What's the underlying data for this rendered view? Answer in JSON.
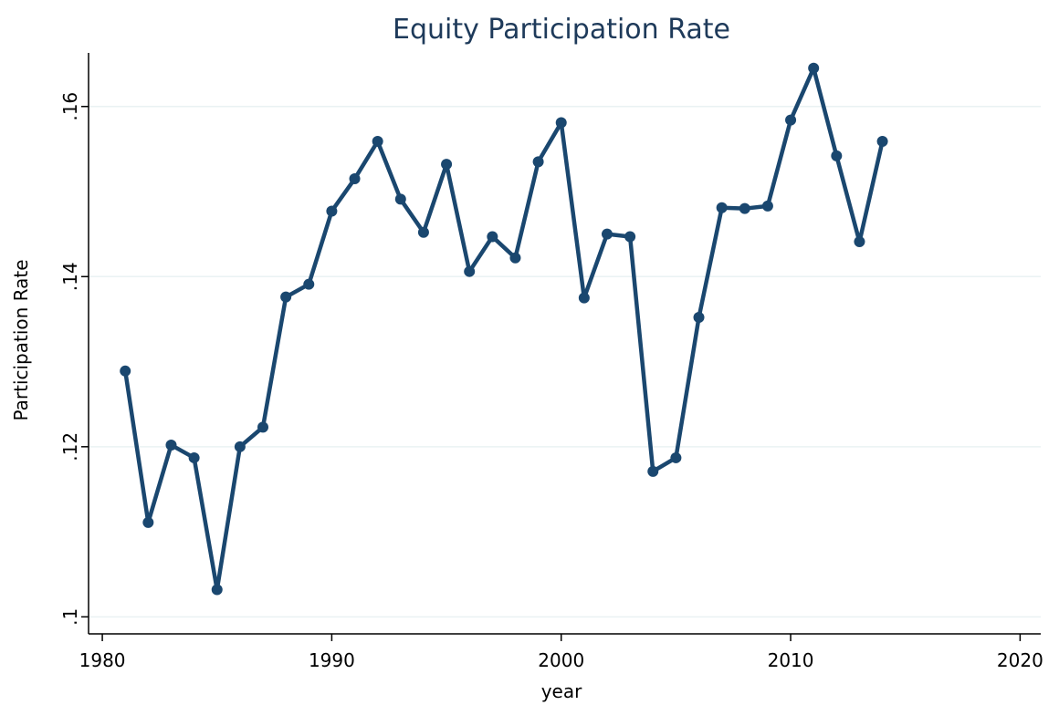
{
  "chart_data": {
    "type": "line",
    "title": "Equity Participation Rate",
    "x_label": "year",
    "y_label": "Participation Rate",
    "x": [
      1981,
      1982,
      1983,
      1984,
      1985,
      1986,
      1987,
      1988,
      1989,
      1990,
      1991,
      1992,
      1993,
      1994,
      1995,
      1996,
      1997,
      1998,
      1999,
      2000,
      2001,
      2002,
      2003,
      2004,
      2005,
      2006,
      2007,
      2008,
      2009,
      2010,
      2011,
      2012,
      2013,
      2014
    ],
    "series": [
      {
        "name": "Participation Rate",
        "color": "#1a476f",
        "values": [
          0.1289,
          0.1111,
          0.1202,
          0.1187,
          0.1032,
          0.12,
          0.1223,
          0.1376,
          0.1391,
          0.1477,
          0.1515,
          0.1559,
          0.1491,
          0.1452,
          0.1532,
          0.1406,
          0.1447,
          0.1422,
          0.1535,
          0.1581,
          0.1375,
          0.145,
          0.1447,
          0.1171,
          0.1187,
          0.1352,
          0.1481,
          0.148,
          0.1483,
          0.1584,
          0.1645,
          0.1542,
          0.1441,
          0.1559
        ]
      }
    ],
    "xlim": [
      1979.4,
      2020.9
    ],
    "xticks": [
      1980,
      1990,
      2000,
      2010,
      2020
    ],
    "ylim": [
      0.098,
      0.1663
    ],
    "yticks": [
      {
        "value": 0.1,
        "label": ".1"
      },
      {
        "value": 0.12,
        "label": ".12"
      },
      {
        "value": 0.14,
        "label": ".14"
      },
      {
        "value": 0.16,
        "label": ".16"
      }
    ],
    "grid": true
  }
}
